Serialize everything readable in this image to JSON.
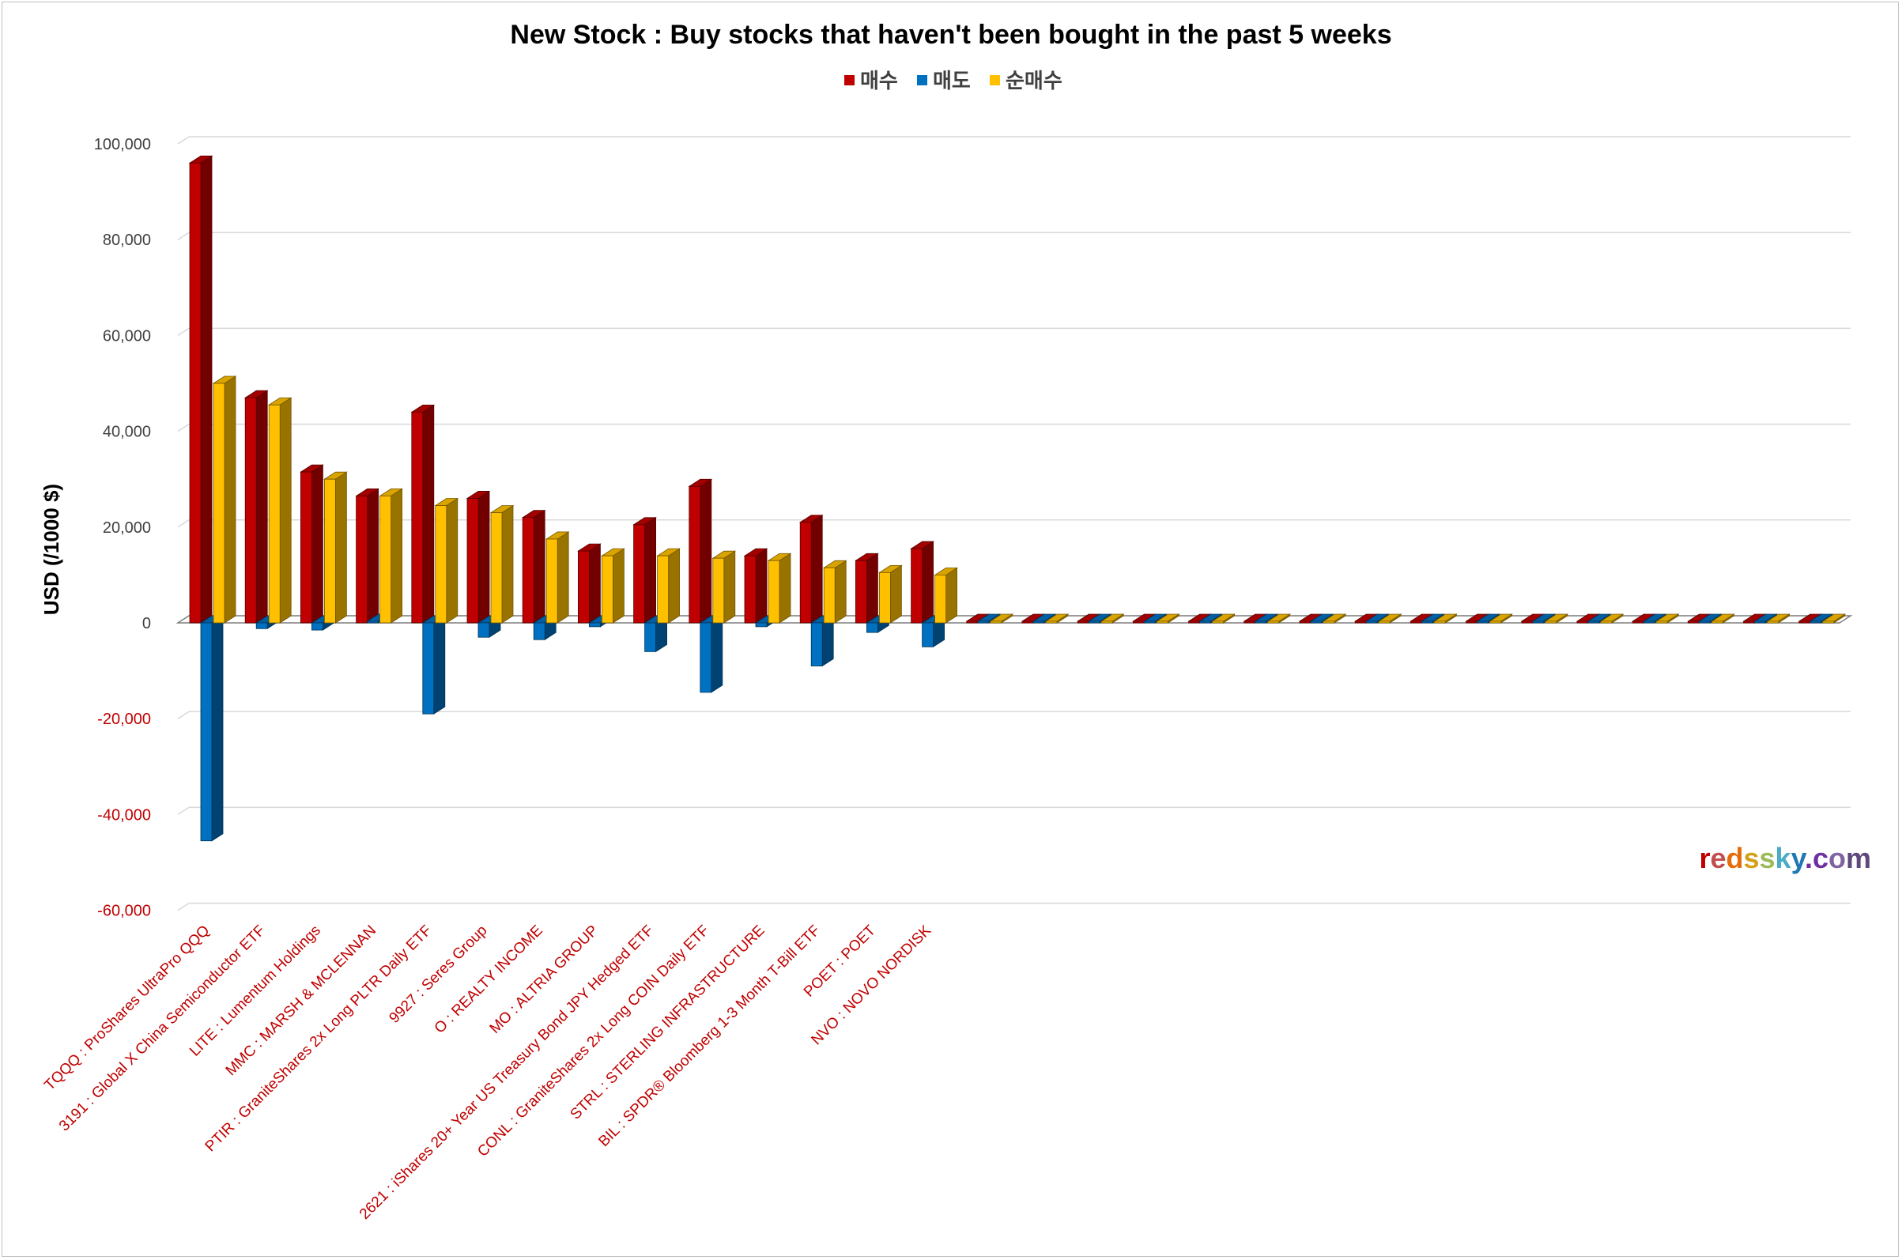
{
  "chart_data": {
    "type": "bar",
    "title": "New Stock : Buy stocks that haven't been bought in the past 5 weeks",
    "ylabel": "USD (/1000 $)",
    "ylim": [
      -60000,
      100000
    ],
    "yticks": [
      100000,
      80000,
      60000,
      40000,
      20000,
      0,
      -20000,
      -40000,
      -60000
    ],
    "ytick_labels": [
      "100,000",
      "80,000",
      "60,000",
      "40,000",
      "20,000",
      "0",
      "-20,000",
      "-40,000",
      "-60,000"
    ],
    "grid": true,
    "legend_position": "top",
    "categories": [
      "TQQQ : ProShares UltraPro QQQ",
      "3191 : Global X China Semiconductor ETF",
      "LITE : Lumentum Holdings",
      "MMC : MARSH & MCLENNAN",
      "PTIR : GraniteShares 2x Long PLTR Daily ETF",
      "9927 : Seres Group",
      "O : REALTY INCOME",
      "MO : ALTRIA GROUP",
      "2621 : iShares 20+ Year US Treasury Bond JPY Hedged ETF",
      "CONL : GraniteShares 2x Long COIN Daily ETF",
      "STRL : STERLING INFRASTRUCTURE",
      "BIL : SPDR® Bloomberg 1-3 Month T-Bill ETF",
      "POET : POET",
      "NVO : NOVO NORDISK",
      "",
      "",
      "",
      "",
      "",
      "",
      "",
      "",
      "",
      "",
      "",
      "",
      "",
      "",
      "",
      ""
    ],
    "series": [
      {
        "name": "매수",
        "color": "#c00000",
        "values": [
          96000,
          47000,
          31500,
          26500,
          44000,
          26000,
          22000,
          15000,
          20500,
          28500,
          14000,
          21000,
          13000,
          15500,
          0,
          0,
          0,
          0,
          0,
          0,
          0,
          0,
          0,
          0,
          0,
          0,
          0,
          0,
          0,
          0
        ]
      },
      {
        "name": "매도",
        "color": "#0070c0",
        "values": [
          -45500,
          -1200,
          -1500,
          0,
          -19000,
          -3000,
          -3500,
          -800,
          -6000,
          -14500,
          -800,
          -9000,
          -2000,
          -5000,
          0,
          0,
          0,
          0,
          0,
          0,
          0,
          0,
          0,
          0,
          0,
          0,
          0,
          0,
          0,
          0
        ]
      },
      {
        "name": "순매수",
        "color": "#ffc000",
        "values": [
          50000,
          45500,
          30000,
          26500,
          24500,
          23000,
          17500,
          14000,
          14000,
          13500,
          13000,
          11500,
          10500,
          10000,
          0,
          0,
          0,
          0,
          0,
          0,
          0,
          0,
          0,
          0,
          0,
          0,
          0,
          0,
          0,
          0
        ]
      }
    ]
  },
  "watermark": {
    "parts": [
      "r",
      "e",
      "d",
      "s",
      "s",
      "k",
      "y",
      ".",
      "c",
      "o",
      "m"
    ],
    "colors": [
      "#c00000",
      "#c0504d",
      "#e46c0a",
      "#d4a017",
      "#9bbb59",
      "#4bacc6",
      "#1f77b4",
      "#7030a0",
      "#7030a0",
      "#8064a2",
      "#5f497a"
    ]
  }
}
